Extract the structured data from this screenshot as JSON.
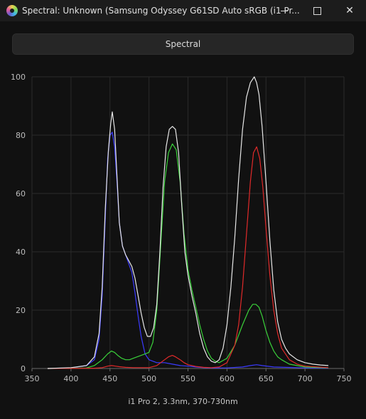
{
  "window": {
    "title": "Spectral: Unknown (Samsung Odyssey G61SD Auto sRGB (i1 Pr..."
  },
  "toolbar": {
    "spectral_label": "Spectral"
  },
  "footer": {
    "label": "i1 Pro 2, 3.3nm, 370-730nm"
  },
  "chart_data": {
    "type": "line",
    "xlim": [
      350,
      750
    ],
    "ylim": [
      0,
      100
    ],
    "x_ticks": [
      "350",
      "400",
      "450",
      "500",
      "550",
      "600",
      "650",
      "700",
      "750"
    ],
    "y_ticks": [
      "0",
      "20",
      "40",
      "60",
      "80",
      "100"
    ],
    "grid": true,
    "series": [
      {
        "color": "#e8e8e8",
        "x": [
          370,
          400,
          420,
          430,
          436,
          440,
          444,
          448,
          451,
          453,
          456,
          459,
          462,
          466,
          470,
          474,
          478,
          482,
          486,
          490,
          494,
          498,
          502,
          506,
          510,
          514,
          518,
          522,
          526,
          530,
          534,
          538,
          542,
          546,
          550,
          555,
          560,
          565,
          570,
          575,
          580,
          585,
          590,
          595,
          600,
          605,
          610,
          615,
          620,
          625,
          630,
          635,
          638,
          641,
          645,
          650,
          655,
          660,
          665,
          670,
          675,
          680,
          690,
          700,
          710,
          720,
          730
        ],
        "y": [
          0,
          0.3,
          1,
          4,
          12,
          28,
          55,
          75,
          84,
          88,
          82,
          66,
          50,
          42,
          39,
          37,
          35,
          31,
          25,
          19,
          14,
          11,
          11,
          14,
          22,
          40,
          62,
          76,
          82,
          83,
          82,
          74,
          56,
          40,
          32,
          25,
          19,
          12,
          7,
          4,
          2.5,
          2,
          3,
          7,
          15,
          28,
          45,
          65,
          82,
          93,
          98,
          100,
          98,
          94,
          83,
          64,
          44,
          27,
          16,
          10,
          7,
          5,
          3,
          2,
          1.5,
          1.2,
          1
        ]
      },
      {
        "color": "#3a3aff",
        "x": [
          370,
          400,
          420,
          430,
          436,
          440,
          444,
          447,
          450,
          453,
          456,
          459,
          462,
          466,
          470,
          474,
          478,
          482,
          486,
          490,
          495,
          500,
          510,
          520,
          530,
          540,
          550,
          560,
          570,
          580,
          600,
          620,
          630,
          638,
          645,
          660,
          700,
          730
        ],
        "y": [
          0,
          0.2,
          1,
          3,
          10,
          25,
          52,
          72,
          80,
          81,
          76,
          64,
          50,
          42,
          39,
          36,
          33,
          26,
          18,
          11,
          5,
          3,
          2,
          2,
          1.5,
          1,
          0.8,
          0.5,
          0.3,
          0.2,
          0.2,
          0.5,
          1,
          1.3,
          1,
          0.5,
          0.2,
          0.1
        ]
      },
      {
        "color": "#3ad13a",
        "x": [
          370,
          420,
          430,
          440,
          447,
          452,
          456,
          460,
          465,
          470,
          475,
          480,
          490,
          500,
          505,
          510,
          515,
          520,
          525,
          530,
          535,
          540,
          545,
          550,
          555,
          560,
          565,
          570,
          575,
          580,
          585,
          590,
          600,
          610,
          620,
          628,
          633,
          637,
          641,
          645,
          650,
          655,
          660,
          665,
          670,
          680,
          690,
          700,
          730
        ],
        "y": [
          0,
          0.2,
          1,
          3,
          5,
          6,
          5.5,
          4.5,
          3.5,
          3,
          3,
          3.5,
          4.5,
          5.5,
          9,
          20,
          42,
          64,
          74,
          77,
          75,
          64,
          46,
          34,
          27,
          21,
          15,
          10,
          6,
          3.5,
          2.5,
          2,
          3.5,
          8,
          15,
          20,
          22,
          22,
          21,
          18,
          13,
          9,
          6,
          4,
          3,
          1.5,
          1,
          0.5,
          0.2
        ]
      },
      {
        "color": "#e12a2a",
        "x": [
          370,
          430,
          440,
          447,
          452,
          457,
          462,
          470,
          480,
          490,
          500,
          510,
          515,
          520,
          525,
          530,
          534,
          540,
          545,
          550,
          560,
          570,
          580,
          590,
          600,
          610,
          615,
          620,
          625,
          630,
          634,
          638,
          642,
          646,
          650,
          655,
          660,
          665,
          670,
          680,
          690,
          700,
          730
        ],
        "y": [
          0,
          0.1,
          0.3,
          0.8,
          1,
          0.8,
          0.6,
          0.4,
          0.3,
          0.3,
          0.3,
          1,
          2,
          3,
          4,
          4.5,
          4,
          3,
          2,
          1.3,
          0.7,
          0.4,
          0.3,
          0.5,
          2,
          8,
          15,
          28,
          46,
          64,
          74,
          76,
          72,
          62,
          48,
          32,
          20,
          12,
          7,
          3,
          1.5,
          0.8,
          0.3
        ]
      }
    ]
  }
}
